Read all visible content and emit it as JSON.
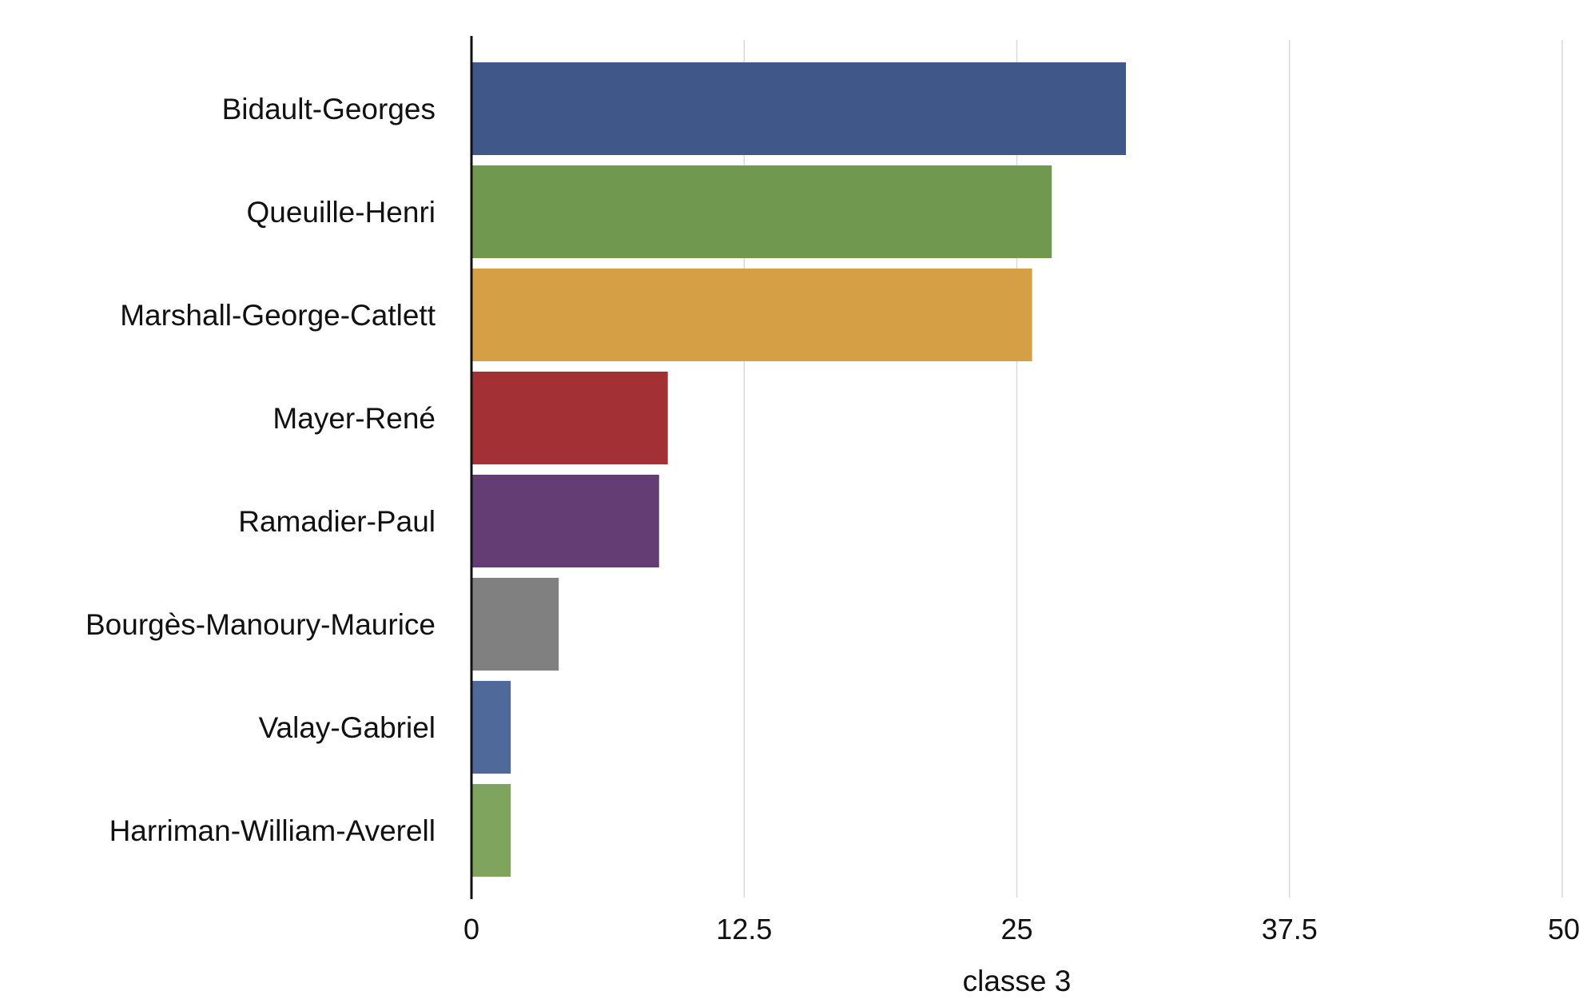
{
  "chart_data": {
    "type": "bar",
    "orientation": "horizontal",
    "title": "",
    "xlabel": "classe 3",
    "ylabel": "",
    "xlim": [
      0,
      50
    ],
    "x_ticks": [
      "0",
      "12.5",
      "25",
      "37.5",
      "50"
    ],
    "x_tick_values": [
      0,
      12.5,
      25,
      37.5,
      50
    ],
    "grid": "vertical",
    "legend": "none",
    "categories": [
      "Bidault-Georges",
      "Queuille-Henri",
      "Marshall-George-Catlett",
      "Mayer-René",
      "Ramadier-Paul",
      "Bourgès-Manoury-Maurice",
      "Valay-Gabriel",
      "Harriman-William-Averell"
    ],
    "values": [
      30.0,
      26.6,
      25.7,
      9.0,
      8.6,
      4.0,
      1.8,
      1.8
    ],
    "colors": [
      "#3f5889",
      "#71984f",
      "#d49f45",
      "#a33034",
      "#633d73",
      "#7f807f",
      "#50699b",
      "#7ea45e"
    ]
  }
}
